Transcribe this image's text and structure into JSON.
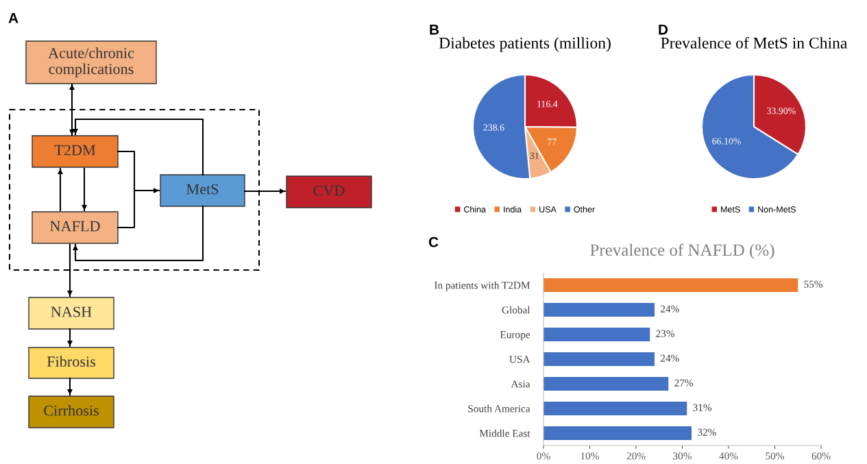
{
  "chart_data": [
    {
      "type": "other",
      "annotations": [
        "A"
      ],
      "categories": [
        "Acute/chronic complications",
        "T2DM",
        "NAFLD",
        "MetS",
        "CVD",
        "NASH",
        "Fibrosis",
        "Cirrhosis"
      ],
      "colors": [
        "#f4b183",
        "#ed7d31",
        "#f4b183",
        "#5b9bd5",
        "#c0202a",
        "#ffe699",
        "#ffd966",
        "#bf9000"
      ]
    },
    {
      "type": "pie",
      "annotations": [
        "B"
      ],
      "title": "Diabetes patients (million)",
      "categories": [
        "China",
        "India",
        "USA",
        "Other"
      ],
      "values": [
        116.4,
        77,
        31,
        238.6
      ],
      "value_labels": [
        "116.4",
        "77",
        "31",
        "238.6"
      ],
      "colors": [
        "#c0202a",
        "#ed7d31",
        "#f4b183",
        "#4472c4"
      ],
      "legend": "bottom"
    },
    {
      "type": "pie",
      "annotations": [
        "D"
      ],
      "title": "Prevalence of MetS in China",
      "categories": [
        "MetS",
        "Non-MetS"
      ],
      "values": [
        33.9,
        66.1
      ],
      "value_labels": [
        "33.90%",
        "66.10%"
      ],
      "colors": [
        "#c0202a",
        "#4472c4"
      ],
      "legend": "bottom"
    },
    {
      "type": "bar",
      "annotations": [
        "C"
      ],
      "orientation": "horizontal",
      "title": "Prevalence of NAFLD (%)",
      "categories": [
        "In patients with T2DM",
        "Global",
        "Europe",
        "USA",
        "Asia",
        "South America",
        "Middle East"
      ],
      "values": [
        55,
        24,
        23,
        24,
        27,
        31,
        32
      ],
      "value_labels": [
        "55%",
        "24%",
        "23%",
        "24%",
        "27%",
        "31%",
        "32%"
      ],
      "colors": [
        "#ed7d31",
        "#4472c4",
        "#4472c4",
        "#4472c4",
        "#4472c4",
        "#4472c4",
        "#4472c4"
      ],
      "xlim": [
        0,
        60
      ],
      "xticks": [
        {
          "value": 0,
          "label": "0%"
        },
        {
          "value": 10,
          "label": "10%"
        },
        {
          "value": 20,
          "label": "20%"
        },
        {
          "value": 30,
          "label": "30%"
        },
        {
          "value": 40,
          "label": "40%"
        },
        {
          "value": 50,
          "label": "50%"
        },
        {
          "value": 60,
          "label": "60%"
        }
      ],
      "grid": false
    }
  ]
}
